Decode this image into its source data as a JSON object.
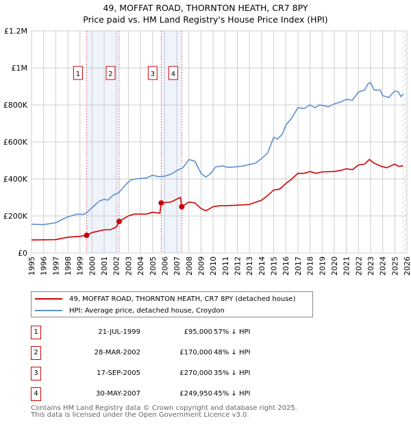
{
  "title": "49, MOFFAT ROAD, THORNTON HEATH, CR7 8PY",
  "subtitle": "Price paid vs. HM Land Registry's House Price Index (HPI)",
  "chart_data": {
    "type": "line",
    "ylim": [
      0,
      1200000
    ],
    "xlim": [
      1995,
      2026
    ],
    "yticks": [
      {
        "v": 0,
        "label": "£0"
      },
      {
        "v": 200000,
        "label": "£200K"
      },
      {
        "v": 400000,
        "label": "£400K"
      },
      {
        "v": 600000,
        "label": "£600K"
      },
      {
        "v": 800000,
        "label": "£800K"
      },
      {
        "v": 1000000,
        "label": "£1M"
      },
      {
        "v": 1200000,
        "label": "£1.2M"
      }
    ],
    "xticks": [
      "1995",
      "1996",
      "1997",
      "1998",
      "1999",
      "2000",
      "2001",
      "2002",
      "2003",
      "2004",
      "2005",
      "2006",
      "2007",
      "2008",
      "2009",
      "2010",
      "2011",
      "2012",
      "2013",
      "2014",
      "2015",
      "2016",
      "2017",
      "2018",
      "2019",
      "2020",
      "2021",
      "2022",
      "2023",
      "2024",
      "2025",
      "2026"
    ],
    "shaded_ranges": [
      [
        1999.55,
        2002.24
      ],
      [
        2005.71,
        2007.41
      ]
    ],
    "forecast_from": 2025.6,
    "series": [
      {
        "name": "49, MOFFAT ROAD, THORNTON HEATH, CR7 8PY (detached house)",
        "color": "#cc0000",
        "x": [
          1995,
          1997,
          1998,
          1999,
          1999.55,
          2000,
          2001,
          2001.5,
          2002,
          2002.24,
          2003,
          2003.5,
          2004.5,
          2005,
          2005.6,
          2005.71,
          2006.5,
          2007.3,
          2007.41,
          2008,
          2008.5,
          2009,
          2009.4,
          2010,
          2010.5,
          2011,
          2012,
          2013,
          2014,
          2014.5,
          2015,
          2015.5,
          2016,
          2016.5,
          2017,
          2017.5,
          2018,
          2018.5,
          2019,
          2020,
          2020.5,
          2021,
          2021.5,
          2022,
          2022.5,
          2022.9,
          2023.3,
          2023.8,
          2024.3,
          2025,
          2025.3,
          2025.7
        ],
        "y": [
          70,
          72,
          85,
          90,
          95,
          110,
          125,
          125,
          140,
          170,
          200,
          210,
          210,
          220,
          215,
          270,
          275,
          300,
          250,
          275,
          270,
          240,
          228,
          250,
          255,
          255,
          258,
          262,
          285,
          310,
          340,
          345,
          375,
          400,
          430,
          430,
          440,
          430,
          438,
          440,
          445,
          455,
          450,
          475,
          480,
          505,
          485,
          470,
          460,
          480,
          468,
          470
        ]
      },
      {
        "name": "HPI: Average price, detached house, Croydon",
        "color": "#5b8fd0",
        "x": [
          1995,
          1996,
          1997,
          1997.5,
          1998,
          1998.8,
          1999.3,
          1999.6,
          2000,
          2000.6,
          2001,
          2001.3,
          2001.7,
          2002.2,
          2002.8,
          2003.2,
          2003.6,
          2004,
          2004.5,
          2005,
          2005.5,
          2006,
          2006.5,
          2007,
          2007.5,
          2008,
          2008.5,
          2009,
          2009.4,
          2009.8,
          2010.2,
          2010.8,
          2011.2,
          2011.8,
          2012.5,
          2013,
          2013.5,
          2014,
          2014.5,
          2015,
          2015.3,
          2015.7,
          2016,
          2016.5,
          2017,
          2017.5,
          2018,
          2018.4,
          2018.8,
          2019.5,
          2020,
          2020.5,
          2021,
          2021.5,
          2022,
          2022.5,
          2022.8,
          2023,
          2023.3,
          2023.8,
          2024,
          2024.5,
          2025,
          2025.3,
          2025.5,
          2025.7
        ],
        "y": [
          155,
          153,
          163,
          180,
          195,
          210,
          208,
          220,
          245,
          280,
          290,
          285,
          310,
          325,
          370,
          395,
          400,
          402,
          405,
          420,
          412,
          415,
          425,
          445,
          460,
          505,
          495,
          430,
          410,
          430,
          465,
          470,
          462,
          465,
          470,
          478,
          485,
          510,
          540,
          625,
          615,
          640,
          690,
          730,
          785,
          780,
          800,
          785,
          800,
          790,
          805,
          815,
          830,
          825,
          870,
          880,
          915,
          920,
          880,
          880,
          850,
          840,
          875,
          870,
          845,
          860
        ]
      }
    ],
    "y_units": "thousands GBP",
    "sales": [
      {
        "n": "1",
        "x": 1999.55,
        "y": 95
      },
      {
        "n": "2",
        "x": 2002.24,
        "y": 170
      },
      {
        "n": "3",
        "x": 2005.71,
        "y": 270
      },
      {
        "n": "4",
        "x": 2007.41,
        "y": 249.95
      }
    ]
  },
  "legend": [
    "49, MOFFAT ROAD, THORNTON HEATH, CR7 8PY (detached house)",
    "HPI: Average price, detached house, Croydon"
  ],
  "sales_table": [
    {
      "n": "1",
      "date": "21-JUL-1999",
      "price": "£95,000",
      "hpi": "57% ↓ HPI"
    },
    {
      "n": "2",
      "date": "28-MAR-2002",
      "price": "£170,000",
      "hpi": "48% ↓ HPI"
    },
    {
      "n": "3",
      "date": "17-SEP-2005",
      "price": "£270,000",
      "hpi": "35% ↓ HPI"
    },
    {
      "n": "4",
      "date": "30-MAY-2007",
      "price": "£249,950",
      "hpi": "45% ↓ HPI"
    }
  ],
  "footer": [
    "Contains HM Land Registry data © Crown copyright and database right 2025.",
    "This data is licensed under the Open Government Licence v3.0."
  ]
}
